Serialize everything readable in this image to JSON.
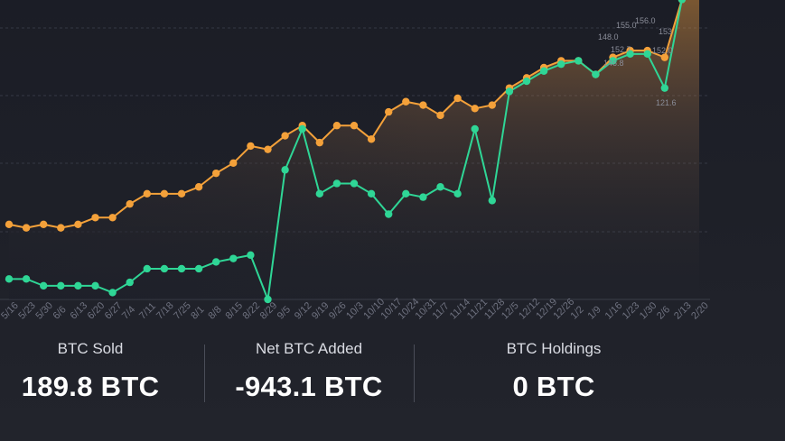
{
  "chart_data": {
    "type": "line",
    "title": "",
    "xlabel": "",
    "ylabel": "",
    "grid": true,
    "categories": [
      "5/16",
      "5/23",
      "5/30",
      "6/6",
      "6/13",
      "6/20",
      "6/27",
      "7/4",
      "7/11",
      "7/18",
      "7/25",
      "8/1",
      "8/8",
      "8/15",
      "8/22",
      "8/29",
      "9/5",
      "9/12",
      "9/19",
      "9/26",
      "10/3",
      "10/10",
      "10/17",
      "10/24",
      "10/31",
      "11/7",
      "11/14",
      "11/21",
      "11/28",
      "12/5",
      "12/12",
      "12/19",
      "12/26",
      "1/2",
      "1/9",
      "1/16",
      "1/23",
      "1/30",
      "2/6",
      "2/13",
      "2/20"
    ],
    "series": [
      {
        "color": "#f4a13a",
        "values": [
          82,
          81,
          82,
          81,
          82,
          84,
          84,
          88,
          91,
          91,
          91,
          93,
          97,
          100,
          105,
          104,
          108,
          111,
          106,
          111,
          111,
          107,
          115,
          118,
          117,
          114,
          119,
          116,
          117,
          122,
          125,
          128,
          130,
          130,
          126,
          131,
          133,
          133,
          131,
          148,
          160
        ]
      },
      {
        "color": "#2fd696",
        "values": [
          66,
          66,
          64,
          64,
          64,
          64,
          62,
          65,
          69,
          69,
          69,
          69,
          71,
          72,
          73,
          60,
          98,
          110,
          91,
          94,
          94,
          91,
          85,
          91,
          90,
          93,
          91,
          110,
          89,
          121,
          124,
          127,
          129,
          130,
          126,
          130,
          132,
          132,
          122,
          148,
          160
        ]
      }
    ],
    "data_labels": [
      "148.0",
      "155.0",
      "156.0",
      "152.7",
      "152.0",
      "146.8",
      "121.6",
      "153"
    ]
  },
  "stats": {
    "sold": {
      "label": "BTC Sold",
      "value": "189.8 BTC"
    },
    "net": {
      "label": "Net BTC Added",
      "value": "-943.1 BTC"
    },
    "holdings": {
      "label": "BTC Holdings",
      "value": "0 BTC"
    }
  }
}
